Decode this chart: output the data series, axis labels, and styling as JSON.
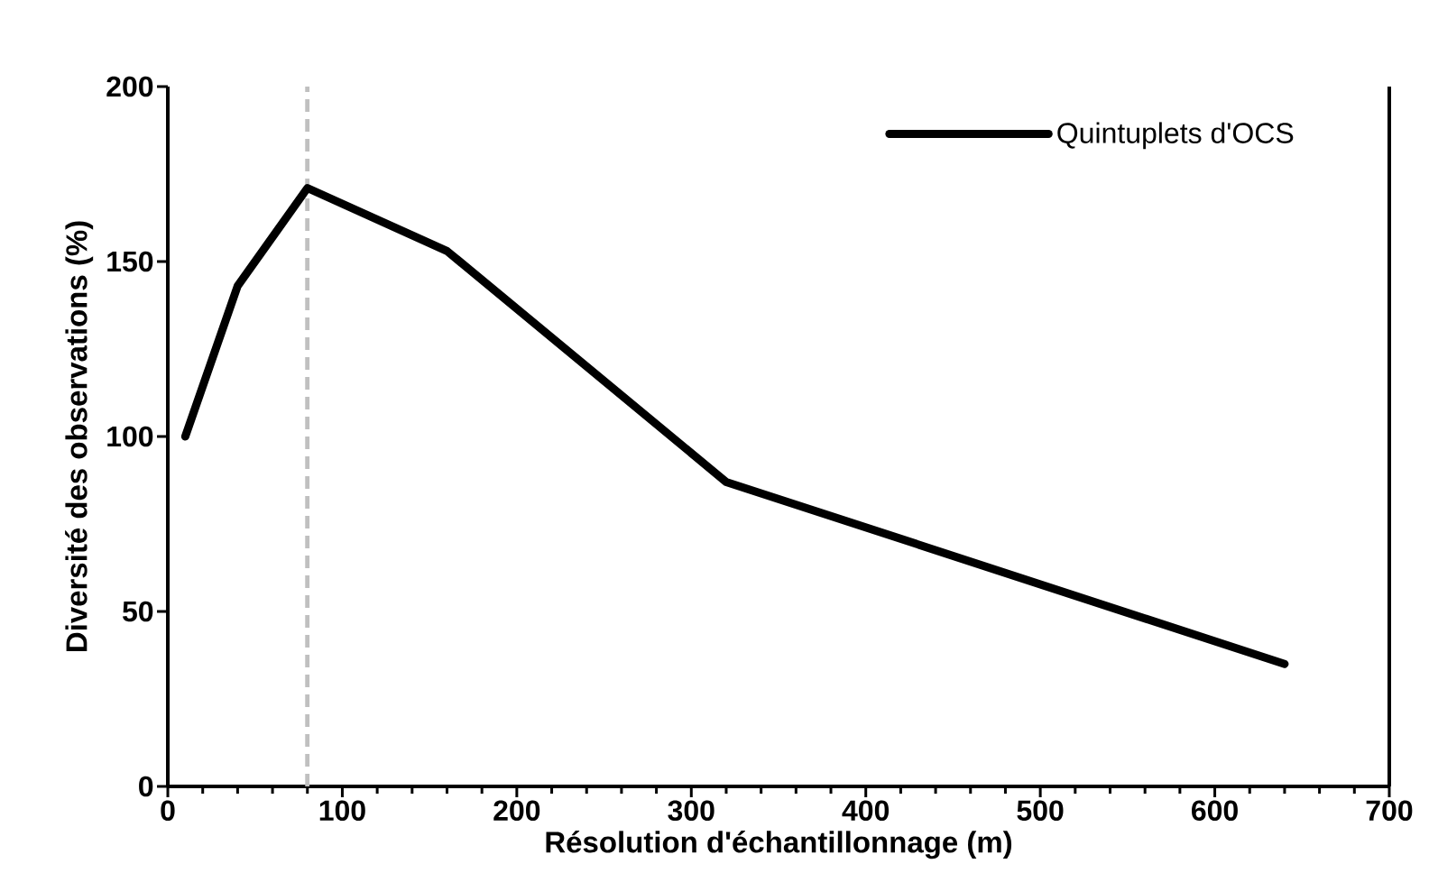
{
  "chart_data": {
    "type": "line",
    "xlabel": "Résolution d'échantillonnage (m)",
    "ylabel": "Diversité des observations (%)",
    "x": [
      10,
      40,
      80,
      160,
      320,
      640
    ],
    "series": [
      {
        "name": "Quintuplets d'OCS",
        "color": "#000000",
        "values": [
          100,
          143,
          171,
          153,
          87,
          35
        ]
      }
    ],
    "xlim": [
      0,
      700
    ],
    "xticks": [
      0,
      100,
      200,
      300,
      400,
      500,
      600,
      700
    ],
    "ylim": [
      0,
      200
    ],
    "yticks": [
      0,
      50,
      100,
      150,
      200
    ],
    "ref_lines": [
      {
        "axis": "x",
        "value": 80,
        "color": "#c0c0c0",
        "line_style": "dashed"
      }
    ],
    "legend": "top right",
    "grid": false,
    "marker": "none",
    "line_style": "solid"
  }
}
